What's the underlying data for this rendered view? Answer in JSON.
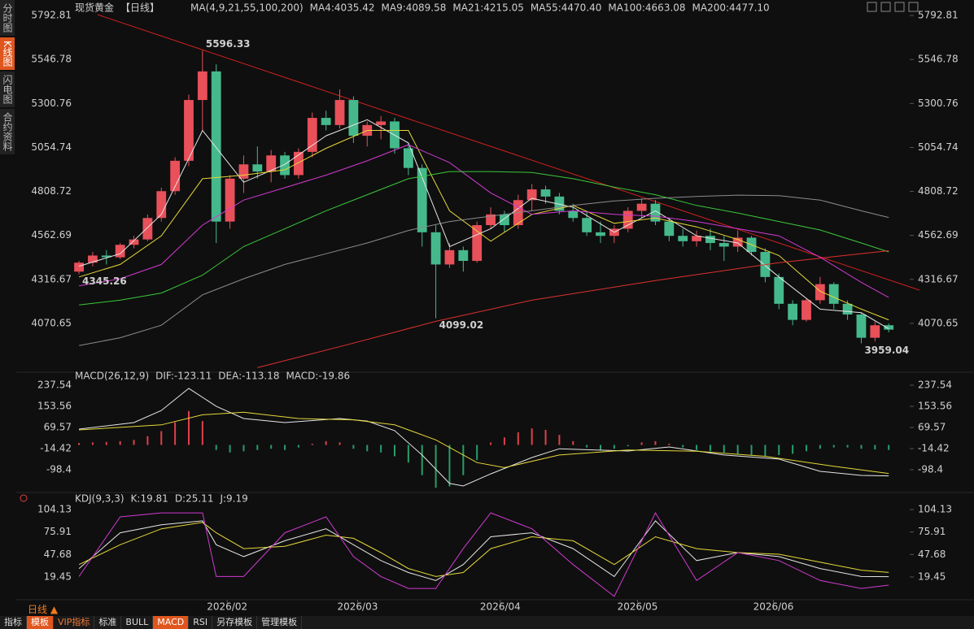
{
  "sidebar": {
    "items": [
      "分时图",
      "K线图",
      "闪电图",
      "合约资料"
    ],
    "active": 1
  },
  "period_tab": "日线 ▲",
  "toolbar": [
    {
      "label": "指标",
      "style": "normal"
    },
    {
      "label": "模板",
      "style": "active"
    },
    {
      "label": "VIP指标",
      "style": "vip"
    },
    {
      "label": "标准",
      "style": "normal"
    },
    {
      "label": "BULL",
      "style": "normal"
    },
    {
      "label": "MACD",
      "style": "active"
    },
    {
      "label": "RSI",
      "style": "normal"
    },
    {
      "label": "另存模板",
      "style": "normal"
    },
    {
      "label": "管理模板",
      "style": "normal"
    }
  ],
  "chart_data": [
    {
      "type": "candlestick",
      "title": "现货黄金",
      "period": "【日线】",
      "ma_label": "MA(4,9,21,55,100,200)",
      "up_color": "#e8505a",
      "down_color": "#45b98c",
      "xlim": [
        -0.3,
        59.7
      ],
      "ylim": [
        3811,
        5834
      ],
      "yticks": [
        5792.81,
        5546.78,
        5300.76,
        5054.74,
        4808.72,
        4562.69,
        4316.67,
        4070.65
      ],
      "candles": [
        [
          4360,
          4420,
          4345.26,
          4410
        ],
        [
          4410,
          4470,
          4390,
          4450
        ],
        [
          4450,
          4480,
          4400,
          4440
        ],
        [
          4440,
          4520,
          4430,
          4510
        ],
        [
          4510,
          4560,
          4490,
          4540
        ],
        [
          4540,
          4680,
          4530,
          4660
        ],
        [
          4660,
          4830,
          4640,
          4810
        ],
        [
          4810,
          5000,
          4790,
          4980
        ],
        [
          4980,
          5350,
          4950,
          5320
        ],
        [
          5320,
          5596.33,
          5150,
          5480
        ],
        [
          5480,
          5520,
          4520,
          4640
        ],
        [
          4640,
          4900,
          4600,
          4880
        ],
        [
          4880,
          5010,
          4800,
          4960
        ],
        [
          4960,
          5060,
          4880,
          4920
        ],
        [
          4920,
          5040,
          4860,
          5010
        ],
        [
          5010,
          5030,
          4880,
          4900
        ],
        [
          4900,
          5050,
          4880,
          5030
        ],
        [
          5030,
          5250,
          5000,
          5220
        ],
        [
          5220,
          5260,
          5150,
          5180
        ],
        [
          5180,
          5380,
          5160,
          5320
        ],
        [
          5320,
          5340,
          5080,
          5120
        ],
        [
          5120,
          5200,
          5060,
          5180
        ],
        [
          5180,
          5230,
          5100,
          5200
        ],
        [
          5200,
          5220,
          5020,
          5050
        ],
        [
          5050,
          5080,
          4900,
          4940
        ],
        [
          4940,
          4960,
          4500,
          4580
        ],
        [
          4580,
          4620,
          4099.02,
          4400
        ],
        [
          4400,
          4520,
          4380,
          4480
        ],
        [
          4480,
          4500,
          4360,
          4420
        ],
        [
          4420,
          4640,
          4410,
          4620
        ],
        [
          4620,
          4720,
          4600,
          4680
        ],
        [
          4680,
          4700,
          4580,
          4620
        ],
        [
          4620,
          4790,
          4600,
          4760
        ],
        [
          4760,
          4850,
          4700,
          4820
        ],
        [
          4820,
          4840,
          4740,
          4780
        ],
        [
          4780,
          4800,
          4680,
          4700
        ],
        [
          4700,
          4740,
          4640,
          4660
        ],
        [
          4660,
          4700,
          4560,
          4580
        ],
        [
          4580,
          4640,
          4520,
          4560
        ],
        [
          4560,
          4620,
          4520,
          4600
        ],
        [
          4600,
          4720,
          4580,
          4700
        ],
        [
          4700,
          4770,
          4660,
          4740
        ],
        [
          4740,
          4760,
          4620,
          4640
        ],
        [
          4640,
          4660,
          4530,
          4560
        ],
        [
          4560,
          4600,
          4500,
          4530
        ],
        [
          4530,
          4590,
          4500,
          4560
        ],
        [
          4560,
          4600,
          4480,
          4520
        ],
        [
          4520,
          4560,
          4420,
          4500
        ],
        [
          4500,
          4590,
          4470,
          4550
        ],
        [
          4550,
          4560,
          4450,
          4470
        ],
        [
          4470,
          4490,
          4300,
          4330
        ],
        [
          4330,
          4350,
          4150,
          4180
        ],
        [
          4180,
          4200,
          4060,
          4090
        ],
        [
          4090,
          4210,
          4080,
          4200
        ],
        [
          4200,
          4330,
          4180,
          4290
        ],
        [
          4290,
          4300,
          4150,
          4180
        ],
        [
          4180,
          4200,
          4090,
          4120
        ],
        [
          4120,
          4130,
          3959.04,
          3990
        ],
        [
          3990,
          4080,
          3970,
          4060
        ],
        [
          4060,
          4070,
          4020,
          4035.42
        ]
      ],
      "series": [
        {
          "name": "MA4:4035.42",
          "color": "#e6e6e6",
          "x": [
            0,
            3,
            6,
            9,
            12,
            15,
            18,
            21,
            24,
            27,
            30,
            33,
            36,
            39,
            42,
            45,
            48,
            51,
            54,
            57,
            59
          ],
          "values": [
            4390,
            4460,
            4680,
            5150,
            4860,
            4960,
            5120,
            5210,
            5080,
            4500,
            4600,
            4770,
            4720,
            4580,
            4700,
            4560,
            4520,
            4330,
            4150,
            4130,
            4040
          ]
        },
        {
          "name": "MA9:4089.58",
          "color": "#e6d83a",
          "x": [
            0,
            3,
            6,
            9,
            12,
            15,
            18,
            21,
            24,
            27,
            30,
            33,
            36,
            39,
            42,
            45,
            48,
            51,
            54,
            57,
            59
          ],
          "values": [
            4330,
            4400,
            4560,
            4880,
            4900,
            4930,
            5050,
            5150,
            5150,
            4700,
            4530,
            4680,
            4730,
            4630,
            4660,
            4610,
            4540,
            4450,
            4250,
            4150,
            4090
          ]
        },
        {
          "name": "MA21:4215.05",
          "color": "#d23ad2",
          "x": [
            0,
            3,
            6,
            9,
            12,
            15,
            18,
            21,
            24,
            27,
            30,
            33,
            36,
            39,
            42,
            45,
            48,
            51,
            54,
            57,
            59
          ],
          "values": [
            4280,
            4320,
            4400,
            4620,
            4760,
            4830,
            4900,
            4980,
            5070,
            4970,
            4800,
            4680,
            4700,
            4680,
            4670,
            4640,
            4600,
            4560,
            4440,
            4300,
            4215
          ]
        },
        {
          "name": "MA55:4470.40",
          "color": "#3ac83a",
          "x": [
            0,
            3,
            6,
            9,
            12,
            15,
            18,
            21,
            24,
            27,
            30,
            33,
            36,
            39,
            42,
            45,
            48,
            51,
            54,
            57,
            59
          ],
          "values": [
            4174,
            4200,
            4240,
            4340,
            4500,
            4600,
            4700,
            4790,
            4880,
            4920,
            4920,
            4915,
            4880,
            4833,
            4790,
            4730,
            4688,
            4640,
            4593,
            4520,
            4470
          ]
        },
        {
          "name": "MA100:4663.08",
          "color": "#8c8c8c",
          "x": [
            0,
            3,
            6,
            9,
            12,
            15,
            18,
            21,
            24,
            27,
            30,
            33,
            36,
            39,
            42,
            45,
            48,
            51,
            54,
            57,
            59
          ],
          "values": [
            3946,
            3990,
            4060,
            4230,
            4320,
            4400,
            4460,
            4520,
            4590,
            4640,
            4670,
            4700,
            4730,
            4755,
            4770,
            4780,
            4788,
            4785,
            4760,
            4700,
            4663
          ]
        },
        {
          "name": "MA200:4477.10",
          "color": "#e03030",
          "x": [
            13,
            20,
            26,
            33,
            42,
            51,
            59
          ],
          "values": [
            3823,
            3960,
            4082,
            4200,
            4310,
            4410,
            4477
          ]
        }
      ],
      "annotations": [
        {
          "index": 9,
          "value": 5596.33,
          "color": "#e0505a",
          "pos": "above"
        },
        {
          "index": 0,
          "value": 4345.26,
          "color": "#45b98c",
          "pos": "below"
        },
        {
          "index": 26,
          "value": 4099.02,
          "color": "#45b98c",
          "pos": "below"
        },
        {
          "index": 57,
          "value": 3959.04,
          "color": "#45b98c",
          "pos": "below"
        }
      ]
    },
    {
      "type": "combo",
      "title": "MACD(26,12,9)",
      "xlim": [
        -0.3,
        59.7
      ],
      "ylim": [
        -188.9,
        276.3
      ],
      "yticks": [
        237.54,
        153.56,
        69.57,
        -14.42,
        -98.4
      ],
      "bars": {
        "name": "MACD:-19.86",
        "color": "#d23ad2",
        "up_color": "#e0404a",
        "down_color": "#2a9d6a",
        "values": [
          8,
          10,
          12,
          15,
          20,
          35,
          55,
          90,
          135,
          95,
          -20,
          -30,
          -25,
          -20,
          -15,
          -20,
          -10,
          5,
          15,
          10,
          -15,
          -25,
          -30,
          -45,
          -70,
          -120,
          -170,
          -165,
          -120,
          -60,
          10,
          30,
          50,
          66,
          60,
          40,
          15,
          -10,
          -20,
          -15,
          -5,
          10,
          15,
          5,
          -10,
          -20,
          -25,
          -30,
          -35,
          -40,
          -45,
          -40,
          -35,
          -25,
          -15,
          -10,
          -10,
          -15,
          -18,
          -19.86
        ]
      },
      "series": [
        {
          "name": "DIF:-123.11",
          "color": "#e6e6e6",
          "x": [
            0,
            4,
            6,
            8,
            10,
            12,
            15,
            19,
            21,
            23,
            25,
            27,
            28,
            30,
            33,
            35,
            40,
            43,
            47,
            51,
            54,
            57,
            59
          ],
          "values": [
            63,
            89,
            137,
            225,
            154,
            105,
            89,
            105,
            95,
            57,
            -40,
            -153,
            -163,
            -115,
            -50,
            -15,
            -24,
            -8,
            -40,
            -56,
            -105,
            -121,
            -123.11
          ]
        },
        {
          "name": "DEA:-113.18",
          "color": "#e6d83a",
          "x": [
            0,
            6,
            9,
            12,
            16,
            20,
            23,
            26,
            29,
            31,
            35,
            40,
            45,
            50,
            55,
            59
          ],
          "values": [
            60,
            80,
            120,
            130,
            105,
            100,
            80,
            20,
            -70,
            -90,
            -40,
            -20,
            -25,
            -45,
            -85,
            -113.18
          ]
        }
      ]
    },
    {
      "type": "line",
      "title": "KDJ(9,3,3)",
      "xlim": [
        -0.3,
        59.7
      ],
      "ylim": [
        -6.1,
        111.3
      ],
      "yticks": [
        104.13,
        75.91,
        47.68,
        19.45
      ],
      "xticks": [
        {
          "value": 10.8,
          "label": "2026/02"
        },
        {
          "value": 20.3,
          "label": "2026/03"
        },
        {
          "value": 30.7,
          "label": "2026/04"
        },
        {
          "value": 40.7,
          "label": "2026/05"
        },
        {
          "value": 50.6,
          "label": "2026/06"
        }
      ],
      "series": [
        {
          "name": "K:19.81",
          "color": "#e6e6e6",
          "x": [
            0,
            3,
            6,
            9,
            10,
            12,
            15,
            18,
            20,
            22,
            24,
            26,
            28,
            30,
            33,
            36,
            39,
            42,
            45,
            48,
            51,
            54,
            57,
            59
          ],
          "values": [
            30,
            75,
            85,
            90,
            60,
            45,
            65,
            80,
            60,
            40,
            25,
            15,
            35,
            70,
            75,
            55,
            20,
            90,
            40,
            50,
            45,
            30,
            20,
            19.81
          ]
        },
        {
          "name": "D:25.11",
          "color": "#e6d83a",
          "x": [
            0,
            3,
            6,
            9,
            10,
            12,
            15,
            18,
            20,
            22,
            24,
            26,
            28,
            30,
            33,
            36,
            39,
            42,
            45,
            48,
            51,
            54,
            57,
            59
          ],
          "values": [
            35,
            60,
            80,
            88,
            75,
            55,
            58,
            72,
            68,
            50,
            30,
            20,
            25,
            55,
            70,
            65,
            35,
            70,
            55,
            50,
            48,
            38,
            28,
            25.11
          ]
        },
        {
          "name": "J:9.19",
          "color": "#d23ad2",
          "x": [
            0,
            3,
            6,
            9,
            10,
            12,
            15,
            18,
            20,
            22,
            24,
            26,
            28,
            30,
            33,
            36,
            39,
            42,
            45,
            48,
            51,
            54,
            57,
            59
          ],
          "values": [
            20,
            95,
            100,
            100,
            20,
            20,
            75,
            95,
            45,
            20,
            5,
            5,
            55,
            100,
            80,
            35,
            -5,
            100,
            15,
            50,
            40,
            15,
            5,
            9.19
          ]
        }
      ]
    }
  ]
}
